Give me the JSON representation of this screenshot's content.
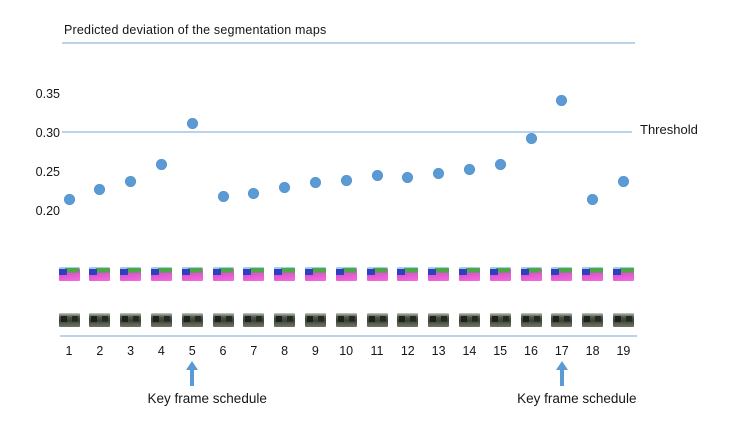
{
  "title": "Predicted deviation of the segmentation maps",
  "threshold_label": "Threshold",
  "key_frame_label": "Key frame schedule",
  "chart_data": {
    "type": "scatter",
    "title": "Predicted deviation of the segmentation maps",
    "x": [
      1,
      2,
      3,
      4,
      5,
      6,
      7,
      8,
      9,
      10,
      11,
      12,
      13,
      14,
      15,
      16,
      17,
      18,
      19
    ],
    "series": [
      {
        "name": "Predicted deviation",
        "values": [
          0.215,
          0.227,
          0.238,
          0.26,
          0.312,
          0.218,
          0.222,
          0.23,
          0.236,
          0.239,
          0.245,
          0.243,
          0.248,
          0.253,
          0.26,
          0.293,
          0.342,
          0.215,
          0.238
        ]
      }
    ],
    "yticks": [
      0.35,
      0.3,
      0.25,
      0.2
    ],
    "ytick_labels": [
      "0.35",
      "0.30",
      "0.25",
      "0.20"
    ],
    "ylim": [
      0.19,
      0.37
    ],
    "threshold": {
      "value": 0.3,
      "label": "Threshold"
    },
    "key_frames": [
      5,
      17
    ],
    "key_frame_label": "Key frame schedule",
    "grid": false,
    "legend": "none",
    "xlabel": "",
    "ylabel": ""
  },
  "thumbnail_rows": [
    {
      "name": "segmentation-maps",
      "count": 19
    },
    {
      "name": "video-frames",
      "count": 19
    }
  ],
  "colors": {
    "dot": "#5b9bd5",
    "light_line": "#b9d3ec",
    "arrow": "#5b9bd5",
    "text": "#1f1f1f"
  }
}
